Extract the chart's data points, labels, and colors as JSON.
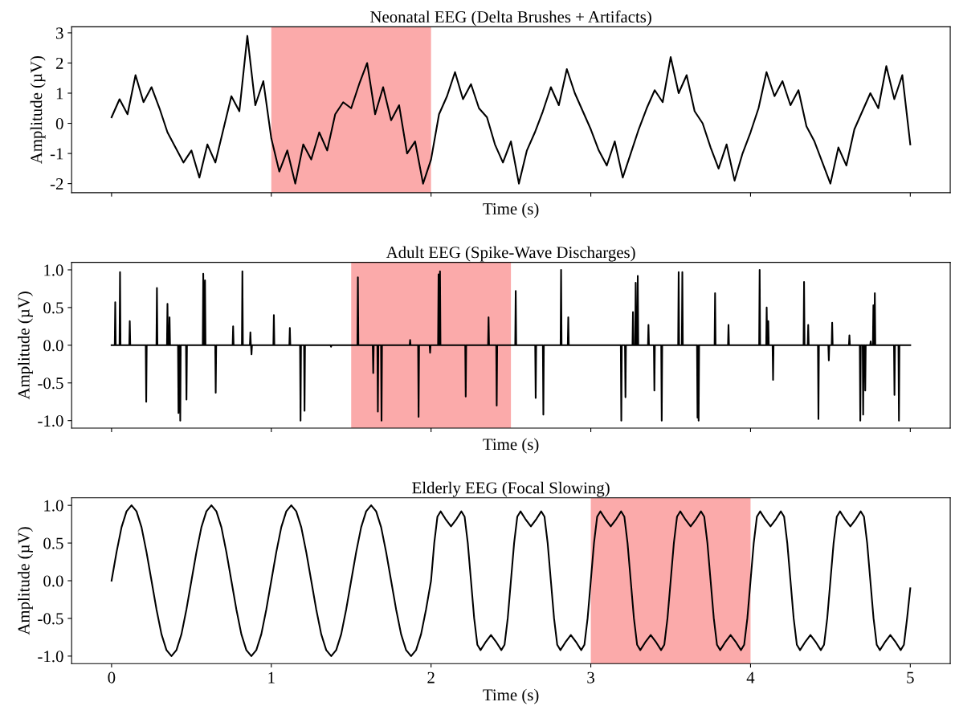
{
  "chart_data": [
    {
      "type": "line",
      "title": "Neonatal EEG (Delta Brushes + Artifacts)",
      "xlabel": "Time (s)",
      "ylabel": "Amplitude (µV)",
      "xlim": [
        -0.25,
        5.25
      ],
      "xticks": [
        0,
        1,
        2,
        3,
        4,
        5
      ],
      "ylim": [
        -2.3,
        3.2
      ],
      "yticks": [
        -2,
        -1,
        0,
        1,
        2,
        3
      ],
      "tick_labels": "y",
      "grid": false,
      "legend": false,
      "bands": [
        {
          "axis": "x",
          "from": 1,
          "to": 2,
          "color": "#fbaaaa"
        }
      ],
      "series": [
        {
          "color": "#000000",
          "x": [
            0,
            0.05,
            0.1,
            0.15,
            0.2,
            0.25,
            0.3,
            0.35,
            0.4,
            0.45,
            0.5,
            0.55,
            0.6,
            0.65,
            0.7,
            0.75,
            0.8,
            0.85,
            0.9,
            0.95,
            1.0,
            1.05,
            1.1,
            1.15,
            1.2,
            1.25,
            1.3,
            1.35,
            1.4,
            1.45,
            1.5,
            1.55,
            1.6,
            1.65,
            1.7,
            1.75,
            1.8,
            1.85,
            1.9,
            1.95,
            2.0,
            2.05,
            2.1,
            2.15,
            2.2,
            2.25,
            2.3,
            2.35,
            2.4,
            2.45,
            2.5,
            2.55,
            2.6,
            2.65,
            2.7,
            2.75,
            2.8,
            2.85,
            2.9,
            2.95,
            3.0,
            3.05,
            3.1,
            3.15,
            3.2,
            3.25,
            3.3,
            3.35,
            3.4,
            3.45,
            3.5,
            3.55,
            3.6,
            3.65,
            3.7,
            3.75,
            3.8,
            3.85,
            3.9,
            3.95,
            4.0,
            4.05,
            4.1,
            4.15,
            4.2,
            4.25,
            4.3,
            4.35,
            4.4,
            4.45,
            4.5,
            4.55,
            4.6,
            4.65,
            4.7,
            4.75,
            4.8,
            4.85,
            4.9,
            4.95,
            5.0
          ],
          "values": [
            0.2,
            0.8,
            0.3,
            1.6,
            0.7,
            1.2,
            0.5,
            -0.3,
            -0.8,
            -1.3,
            -0.9,
            -1.8,
            -0.7,
            -1.3,
            -0.2,
            0.9,
            0.4,
            2.9,
            0.6,
            1.4,
            -0.5,
            -1.6,
            -0.9,
            -2.0,
            -0.7,
            -1.2,
            -0.3,
            -0.9,
            0.3,
            0.7,
            0.5,
            1.3,
            2.0,
            0.3,
            1.2,
            0.1,
            0.6,
            -1.0,
            -0.6,
            -2.0,
            -1.2,
            0.3,
            0.9,
            1.7,
            0.8,
            1.3,
            0.5,
            0.2,
            -0.7,
            -1.3,
            -0.6,
            -2.0,
            -0.9,
            -0.3,
            0.4,
            1.2,
            0.6,
            1.8,
            1.0,
            0.4,
            -0.2,
            -0.9,
            -1.4,
            -0.6,
            -1.8,
            -1.0,
            -0.2,
            0.5,
            1.1,
            0.7,
            2.2,
            1.0,
            1.6,
            0.4,
            0.0,
            -0.8,
            -1.5,
            -0.7,
            -1.9,
            -1.0,
            -0.3,
            0.5,
            1.7,
            0.9,
            1.4,
            0.6,
            1.1,
            -0.1,
            -0.6,
            -1.3,
            -2.0,
            -0.8,
            -1.4,
            -0.2,
            0.4,
            1.0,
            0.5,
            1.9,
            0.8,
            1.6,
            -0.7
          ]
        }
      ]
    },
    {
      "type": "line",
      "title": "Adult EEG (Spike-Wave Discharges)",
      "xlabel": "Time (s)",
      "ylabel": "Amplitude (µV)",
      "xlim": [
        -0.25,
        5.25
      ],
      "xticks": [
        0,
        1,
        2,
        3,
        4,
        5
      ],
      "ylim": [
        -1.1,
        1.1
      ],
      "yticks": [
        {
          "value": -1,
          "label": "-1.0"
        },
        {
          "value": -0.5,
          "label": "-0.5"
        },
        {
          "value": 0,
          "label": "0.0"
        },
        {
          "value": 0.5,
          "label": "0.5"
        },
        {
          "value": 1,
          "label": "1.0"
        }
      ],
      "tick_labels": "y",
      "grid": false,
      "legend": false,
      "bands": [
        {
          "axis": "x",
          "from": 1.5,
          "to": 2.5,
          "color": "#fbaaaa"
        }
      ],
      "series": [
        {
          "color": "#000000",
          "x": [
            0,
            0.02,
            0.023,
            0.026,
            0.05,
            0.053,
            0.056,
            0.111,
            0.114,
            0.117,
            0.214,
            0.217,
            0.22,
            0.281,
            0.284,
            0.287,
            0.347,
            0.35,
            0.353,
            0.36,
            0.363,
            0.366,
            0.416,
            0.419,
            0.422,
            0.427,
            0.43,
            0.433,
            0.466,
            0.469,
            0.472,
            0.571,
            0.574,
            0.577,
            0.582,
            0.585,
            0.588,
            0.649,
            0.652,
            0.655,
            0.758,
            0.761,
            0.764,
            0.816,
            0.819,
            0.822,
            0.866,
            0.869,
            0.872,
            0.873,
            0.876,
            0.879,
            1.013,
            1.016,
            1.019,
            1.113,
            1.116,
            1.119,
            1.18,
            1.183,
            1.186,
            1.205,
            1.208,
            1.211,
            1.371,
            1.374,
            1.377,
            1.539,
            1.542,
            1.545,
            1.635,
            1.638,
            1.641,
            1.664,
            1.667,
            1.67,
            1.687,
            1.69,
            1.693,
            1.866,
            1.869,
            1.872,
            1.919,
            1.922,
            1.925,
            1.991,
            1.994,
            1.997,
            2.044,
            2.047,
            2.05,
            2.053,
            2.056,
            2.059,
            2.214,
            2.217,
            2.22,
            2.357,
            2.36,
            2.363,
            2.408,
            2.411,
            2.414,
            2.527,
            2.53,
            2.533,
            2.652,
            2.655,
            2.658,
            2.7,
            2.703,
            2.706,
            2.811,
            2.814,
            2.817,
            2.856,
            2.859,
            2.862,
            3.188,
            3.191,
            3.194,
            3.214,
            3.217,
            3.22,
            3.261,
            3.264,
            3.267,
            3.278,
            3.281,
            3.284,
            3.291,
            3.294,
            3.297,
            3.358,
            3.361,
            3.364,
            3.395,
            3.398,
            3.401,
            3.441,
            3.444,
            3.447,
            3.547,
            3.55,
            3.553,
            3.57,
            3.573,
            3.576,
            3.665,
            3.668,
            3.671,
            3.672,
            3.675,
            3.678,
            3.775,
            3.778,
            3.781,
            3.859,
            3.862,
            3.865,
            4.054,
            4.057,
            4.06,
            4.098,
            4.101,
            4.104,
            4.108,
            4.111,
            4.114,
            4.138,
            4.141,
            4.144,
            4.332,
            4.335,
            4.338,
            4.358,
            4.361,
            4.364,
            4.422,
            4.425,
            4.428,
            4.487,
            4.49,
            4.493,
            4.508,
            4.511,
            4.514,
            4.616,
            4.619,
            4.622,
            4.684,
            4.687,
            4.69,
            4.702,
            4.705,
            4.708,
            4.715,
            4.718,
            4.721,
            4.749,
            4.752,
            4.755,
            4.766,
            4.769,
            4.772,
            4.775,
            4.778,
            4.781,
            4.898,
            4.901,
            4.904,
            4.926,
            4.929,
            4.932,
            5.0
          ],
          "values": [
            0,
            0,
            0.57,
            0,
            0,
            0.97,
            0,
            0,
            0.32,
            0,
            0,
            -0.75,
            0,
            0,
            0.76,
            0,
            0,
            0.55,
            0,
            0,
            0.37,
            0,
            0,
            -0.9,
            0,
            0,
            -1.0,
            0,
            0,
            -0.72,
            0,
            0,
            0.95,
            0,
            0,
            0.86,
            0,
            0,
            -0.63,
            0,
            0,
            0.25,
            0,
            0,
            0.98,
            0,
            0,
            0.17,
            0,
            0,
            -0.12,
            0,
            0,
            0.4,
            0,
            0,
            0.23,
            0,
            0,
            -1.0,
            0,
            0,
            -0.87,
            0,
            0,
            -0.02,
            0,
            0,
            0.9,
            0,
            0,
            -0.37,
            0,
            0,
            -0.88,
            0,
            0,
            -1.0,
            0,
            0,
            0.07,
            0,
            0,
            -0.95,
            0,
            0,
            -0.1,
            0,
            0,
            0.94,
            0,
            0,
            0.98,
            0,
            0,
            -0.68,
            0,
            0,
            0.37,
            0,
            0,
            -0.8,
            0,
            0,
            0.72,
            0,
            0,
            -0.7,
            0,
            0,
            -0.92,
            0,
            0,
            1.0,
            0,
            0,
            0.37,
            0,
            0,
            -1.0,
            0,
            0,
            -0.69,
            0,
            0,
            0.44,
            0,
            0,
            0.83,
            0,
            0,
            0.92,
            0,
            0,
            0.27,
            0,
            0,
            -0.6,
            0,
            0,
            -1.0,
            0,
            0,
            0.97,
            0,
            0,
            0.97,
            0,
            0,
            -0.96,
            0,
            0,
            -1.0,
            0,
            0,
            0.69,
            0,
            0,
            0.27,
            0,
            0,
            1.0,
            0,
            0,
            0.5,
            0,
            0,
            0.32,
            0,
            0,
            -0.46,
            0,
            0,
            0.84,
            0,
            0,
            0.27,
            0,
            0,
            -0.98,
            0,
            0,
            -0.2,
            0,
            0,
            0.3,
            0,
            0,
            0.13,
            0,
            0,
            -1.0,
            0,
            0,
            -0.92,
            0,
            0,
            -0.6,
            0,
            0,
            0.05,
            0,
            0,
            0.53,
            0,
            0,
            0.69,
            0,
            0,
            -0.66,
            0,
            0,
            -1.0,
            0,
            0
          ]
        }
      ]
    },
    {
      "type": "line",
      "title": "Elderly EEG (Focal Slowing)",
      "xlabel": "Time (s)",
      "ylabel": "Amplitude (µV)",
      "xlim": [
        -0.25,
        5.25
      ],
      "xticks": [
        0,
        1,
        2,
        3,
        4,
        5
      ],
      "ylim": [
        -1.1,
        1.1
      ],
      "yticks": [
        {
          "value": -1,
          "label": "-1.0"
        },
        {
          "value": -0.5,
          "label": "-0.5"
        },
        {
          "value": 0,
          "label": "0.0"
        },
        {
          "value": 0.5,
          "label": "0.5"
        },
        {
          "value": 1,
          "label": "1.0"
        }
      ],
      "grid": false,
      "legend": false,
      "bands": [
        {
          "axis": "x",
          "from": 3,
          "to": 4,
          "color": "#fbaaaa"
        }
      ],
      "series": [
        {
          "color": "#000000",
          "x": [
            0,
            0.03125,
            0.0625,
            0.09375,
            0.125,
            0.15625,
            0.1875,
            0.21875,
            0.25,
            0.28125,
            0.3125,
            0.34375,
            0.375,
            0.40625,
            0.4375,
            0.46875,
            0.5,
            0.53125,
            0.5625,
            0.59375,
            0.625,
            0.65625,
            0.6875,
            0.71875,
            0.75,
            0.78125,
            0.8125,
            0.84375,
            0.875,
            0.90625,
            0.9375,
            0.96875,
            1.0,
            1.03125,
            1.0625,
            1.09375,
            1.125,
            1.15625,
            1.1875,
            1.21875,
            1.25,
            1.28125,
            1.3125,
            1.34375,
            1.375,
            1.40625,
            1.4375,
            1.46875,
            1.5,
            1.53125,
            1.5625,
            1.59375,
            1.625,
            1.65625,
            1.6875,
            1.71875,
            1.75,
            1.78125,
            1.8125,
            1.84375,
            1.875,
            1.90625,
            1.9375,
            1.96875,
            2.0,
            2.02,
            2.04,
            2.06,
            2.09,
            2.125,
            2.16,
            2.19,
            2.21,
            2.23,
            2.25,
            2.27,
            2.29,
            2.31,
            2.34,
            2.375,
            2.41,
            2.44,
            2.46,
            2.48,
            2.5,
            2.52,
            2.54,
            2.56,
            2.59,
            2.625,
            2.66,
            2.69,
            2.71,
            2.73,
            2.75,
            2.77,
            2.79,
            2.81,
            2.84,
            2.875,
            2.91,
            2.94,
            2.96,
            2.98,
            3.0,
            3.02,
            3.04,
            3.06,
            3.09,
            3.125,
            3.16,
            3.19,
            3.21,
            3.23,
            3.25,
            3.27,
            3.29,
            3.31,
            3.34,
            3.375,
            3.41,
            3.44,
            3.46,
            3.48,
            3.5,
            3.52,
            3.54,
            3.56,
            3.59,
            3.625,
            3.66,
            3.69,
            3.71,
            3.73,
            3.75,
            3.77,
            3.79,
            3.81,
            3.84,
            3.875,
            3.91,
            3.94,
            3.96,
            3.98,
            4.0,
            4.02,
            4.04,
            4.06,
            4.09,
            4.125,
            4.16,
            4.19,
            4.21,
            4.23,
            4.25,
            4.27,
            4.29,
            4.31,
            4.34,
            4.375,
            4.41,
            4.44,
            4.46,
            4.48,
            4.5,
            4.52,
            4.54,
            4.56,
            4.59,
            4.625,
            4.66,
            4.69,
            4.71,
            4.73,
            4.75,
            4.77,
            4.79,
            4.81,
            4.84,
            4.875,
            4.91,
            4.94,
            4.96,
            4.98,
            5.0
          ],
          "values": [
            0,
            0.38,
            0.71,
            0.92,
            1,
            0.92,
            0.71,
            0.38,
            0,
            -0.38,
            -0.71,
            -0.92,
            -1,
            -0.92,
            -0.71,
            -0.38,
            0,
            0.38,
            0.71,
            0.92,
            1,
            0.92,
            0.71,
            0.38,
            0,
            -0.38,
            -0.71,
            -0.92,
            -1,
            -0.92,
            -0.71,
            -0.38,
            0,
            0.38,
            0.71,
            0.92,
            1,
            0.92,
            0.71,
            0.38,
            0,
            -0.38,
            -0.71,
            -0.92,
            -1,
            -0.92,
            -0.71,
            -0.38,
            0,
            0.38,
            0.71,
            0.92,
            1,
            0.92,
            0.71,
            0.38,
            0,
            -0.38,
            -0.71,
            -0.92,
            -1,
            -0.92,
            -0.71,
            -0.38,
            0,
            0.5,
            0.85,
            0.92,
            0.82,
            0.72,
            0.82,
            0.92,
            0.85,
            0.5,
            0,
            -0.5,
            -0.85,
            -0.92,
            -0.82,
            -0.72,
            -0.82,
            -0.92,
            -0.85,
            -0.5,
            0,
            0.5,
            0.85,
            0.92,
            0.82,
            0.72,
            0.82,
            0.92,
            0.85,
            0.5,
            0,
            -0.5,
            -0.85,
            -0.92,
            -0.82,
            -0.72,
            -0.82,
            -0.92,
            -0.85,
            -0.5,
            0,
            0.5,
            0.85,
            0.92,
            0.82,
            0.72,
            0.82,
            0.92,
            0.85,
            0.5,
            0,
            -0.5,
            -0.85,
            -0.92,
            -0.82,
            -0.72,
            -0.82,
            -0.92,
            -0.85,
            -0.5,
            0,
            0.5,
            0.85,
            0.92,
            0.82,
            0.72,
            0.82,
            0.92,
            0.85,
            0.5,
            0,
            -0.5,
            -0.85,
            -0.92,
            -0.82,
            -0.72,
            -0.82,
            -0.92,
            -0.85,
            -0.5,
            0,
            0.5,
            0.85,
            0.92,
            0.82,
            0.72,
            0.82,
            0.92,
            0.85,
            0.5,
            0,
            -0.5,
            -0.85,
            -0.92,
            -0.82,
            -0.72,
            -0.82,
            -0.92,
            -0.85,
            -0.5,
            0,
            0.5,
            0.85,
            0.92,
            0.82,
            0.72,
            0.82,
            0.92,
            0.85,
            0.5,
            0,
            -0.5,
            -0.85,
            -0.92,
            -0.82,
            -0.72,
            -0.82,
            -0.92,
            -0.85,
            -0.5,
            -0.1
          ]
        }
      ]
    }
  ]
}
